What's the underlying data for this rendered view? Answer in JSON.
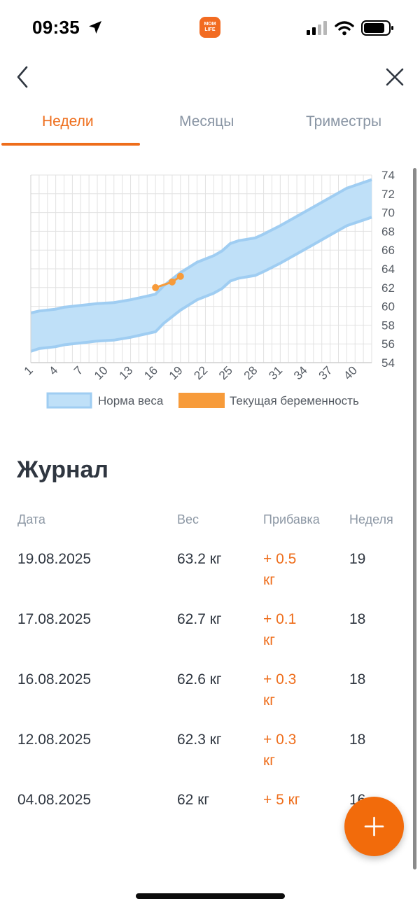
{
  "status_bar": {
    "time": "09:35",
    "app_logo_text": "MOM LIFE",
    "icons": [
      "location-arrow-icon",
      "signal-icon",
      "wifi-icon",
      "battery-icon"
    ]
  },
  "nav": {
    "icons": [
      "chevron-left-icon",
      "close-icon"
    ]
  },
  "tabs": [
    {
      "label": "Недели",
      "active": true
    },
    {
      "label": "Месяцы",
      "active": false
    },
    {
      "label": "Триместры",
      "active": false
    }
  ],
  "colors": {
    "accent": "#ee6d1b",
    "norm_fill": "#bfe0f8",
    "norm_line": "#9fcdf2",
    "current": "#f79b3a"
  },
  "chart_data": {
    "type": "area",
    "x_ticks": [
      1,
      4,
      7,
      10,
      13,
      16,
      19,
      22,
      25,
      28,
      31,
      34,
      37,
      40
    ],
    "y_ticks": [
      54,
      56,
      58,
      60,
      62,
      64,
      66,
      68,
      70,
      72,
      74
    ],
    "xlim": [
      1,
      42
    ],
    "ylim": [
      54,
      74
    ],
    "y_axis_position": "right",
    "grid": true,
    "legend_position": "bottom",
    "series": [
      {
        "name": "Норма веса",
        "kind": "band",
        "x": [
          1,
          2,
          4,
          5,
          7,
          9,
          11,
          13,
          15,
          16,
          17,
          19,
          21,
          23,
          24,
          25,
          26,
          28,
          29,
          31,
          33,
          35,
          37,
          39,
          42
        ],
        "lower": [
          55.2,
          55.5,
          55.7,
          55.9,
          56.1,
          56.3,
          56.4,
          56.7,
          57.1,
          57.3,
          58.2,
          59.6,
          60.7,
          61.4,
          61.9,
          62.7,
          63.0,
          63.3,
          63.7,
          64.6,
          65.6,
          66.6,
          67.6,
          68.6,
          69.5
        ],
        "upper": [
          59.3,
          59.5,
          59.7,
          59.9,
          60.1,
          60.3,
          60.4,
          60.7,
          61.1,
          61.3,
          62.2,
          63.6,
          64.7,
          65.4,
          65.9,
          66.7,
          67.0,
          67.3,
          67.7,
          68.6,
          69.6,
          70.6,
          71.6,
          72.6,
          73.5
        ]
      },
      {
        "name": "Текущая беременность",
        "kind": "line",
        "x": [
          16,
          18,
          19
        ],
        "y": [
          62.0,
          62.6,
          63.2
        ]
      }
    ]
  },
  "journal": {
    "title": "Журнал",
    "headers": {
      "date": "Дата",
      "weight": "Вес",
      "gain": "Прибавка",
      "week": "Неделя"
    },
    "rows": [
      {
        "date": "19.08.2025",
        "weight": "63.2 кг",
        "gain_line1": "+ 0.5",
        "gain_line2": "кг",
        "week": "19"
      },
      {
        "date": "17.08.2025",
        "weight": "62.7 кг",
        "gain_line1": "+ 0.1",
        "gain_line2": "кг",
        "week": "18"
      },
      {
        "date": "16.08.2025",
        "weight": "62.6 кг",
        "gain_line1": "+ 0.3",
        "gain_line2": "кг",
        "week": "18"
      },
      {
        "date": "12.08.2025",
        "weight": "62.3 кг",
        "gain_line1": "+ 0.3",
        "gain_line2": "кг",
        "week": "18"
      },
      {
        "date": "04.08.2025",
        "weight": "62 кг",
        "gain_line1": "+ 5 кг",
        "gain_line2": "",
        "week": "16"
      }
    ]
  },
  "fab": {
    "icon": "plus-icon"
  }
}
